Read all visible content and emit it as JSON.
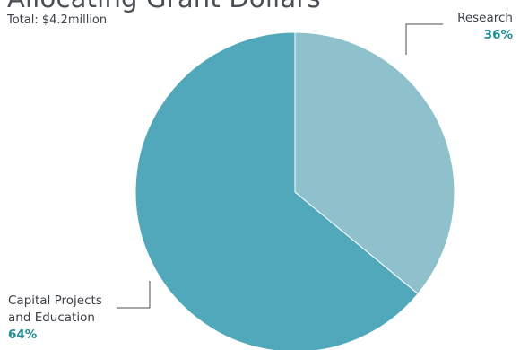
{
  "chart_data": {
    "type": "pie",
    "title": "Allocating Grant Dollars",
    "subtitle": "Total: $4.2million",
    "slices": [
      {
        "label": "Research",
        "value": 36,
        "display": "36%",
        "color": "#8ec1cc"
      },
      {
        "label": "Capital Projects and Education",
        "label_lines": [
          "Capital Projects",
          "and Education"
        ],
        "value": 64,
        "display": "64%",
        "color": "#51a8bb"
      }
    ],
    "start_angle": "12 o'clock",
    "direction": "clockwise",
    "legend": "none"
  }
}
